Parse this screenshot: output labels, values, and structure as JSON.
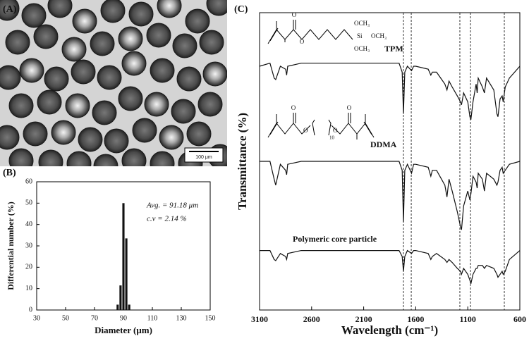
{
  "panel_a": {
    "label": "(A)",
    "scale_bar": "100 μm"
  },
  "chart_data": [
    {
      "type": "histogram",
      "label": "(B)",
      "x_label": "Diameter (μm)",
      "y_label": "Differential number (%)",
      "annotations": [
        "Avg. = 91.18 μm",
        "c.v = 2.14 %"
      ],
      "bins": [
        85,
        87,
        89,
        91,
        93,
        95
      ],
      "values": [
        2.5,
        11.5,
        50,
        33.5,
        2.5
      ],
      "color": "#111111",
      "xlim": [
        30,
        150
      ],
      "xticks": [
        30,
        50,
        70,
        90,
        110,
        130,
        150
      ],
      "ylim": [
        0,
        60
      ],
      "yticks": [
        0,
        10,
        20,
        30,
        40,
        50,
        60
      ]
    },
    {
      "type": "line",
      "label": "(C)",
      "x_label": "Wavelength (cm⁻¹)",
      "y_label": "Transmittance (%)",
      "xlim": [
        3100,
        600
      ],
      "xticks": [
        3100,
        2600,
        2100,
        1600,
        1100,
        600
      ],
      "ylim": [
        0,
        100
      ],
      "reference_lines": [
        1718,
        1643,
        1176,
        1074,
        749
      ],
      "structure_texts": {
        "tpm": [
          "O",
          "Si",
          "OCH₃",
          "OCH₃",
          "OCH₃",
          "O"
        ],
        "ddma": [
          "O",
          "O",
          "10",
          "O",
          "O"
        ]
      },
      "x": [
        3100,
        3000,
        2960,
        2945,
        2900,
        2850,
        2840,
        2830,
        2700,
        2000,
        1760,
        1730,
        1718,
        1705,
        1680,
        1640,
        1620,
        1600,
        1480,
        1455,
        1440,
        1400,
        1320,
        1300,
        1280,
        1250,
        1200,
        1170,
        1160,
        1140,
        1100,
        1080,
        1070,
        1050,
        1020,
        1010,
        1000,
        960,
        940,
        920,
        850,
        820,
        810,
        790,
        770,
        760,
        740,
        700,
        600
      ],
      "series": [
        {
          "name": "TPM",
          "color": "#111111",
          "values": [
            82,
            83,
            78,
            77.5,
            82,
            81,
            79,
            82,
            83,
            83,
            83,
            80,
            66,
            80,
            82,
            80.5,
            82,
            82,
            81,
            79,
            80,
            80,
            76,
            74,
            77,
            75,
            72,
            70,
            69,
            73,
            70,
            65,
            64,
            70,
            76,
            73,
            78,
            75,
            73,
            78,
            74,
            66,
            65,
            71,
            72,
            70,
            75,
            78,
            82
          ]
        },
        {
          "name": "DDMA",
          "color": "#111111",
          "values": [
            50,
            50,
            44,
            42,
            49,
            47,
            45.5,
            49,
            50,
            50,
            50,
            47,
            29.6,
            47,
            49,
            46,
            49,
            49,
            48,
            45,
            47,
            47,
            42,
            38,
            44,
            40,
            33,
            28,
            27,
            35,
            40,
            37,
            39,
            45,
            43,
            41,
            46,
            44,
            40,
            46,
            44,
            42,
            43,
            47,
            48,
            46,
            47,
            49,
            50
          ]
        },
        {
          "name": "Polymeric core particle",
          "color": "#111111",
          "values": [
            20,
            20,
            17,
            16.6,
            19,
            18,
            17,
            19,
            20,
            20,
            20,
            18,
            13,
            18,
            20,
            19,
            20,
            20,
            19,
            17,
            18,
            19,
            17,
            16,
            17,
            16,
            14,
            13,
            12,
            14,
            12,
            10,
            8.8,
            12,
            14,
            14,
            15,
            15,
            14,
            15,
            14,
            12,
            11,
            12,
            13,
            12,
            13,
            17,
            20
          ]
        }
      ]
    }
  ]
}
